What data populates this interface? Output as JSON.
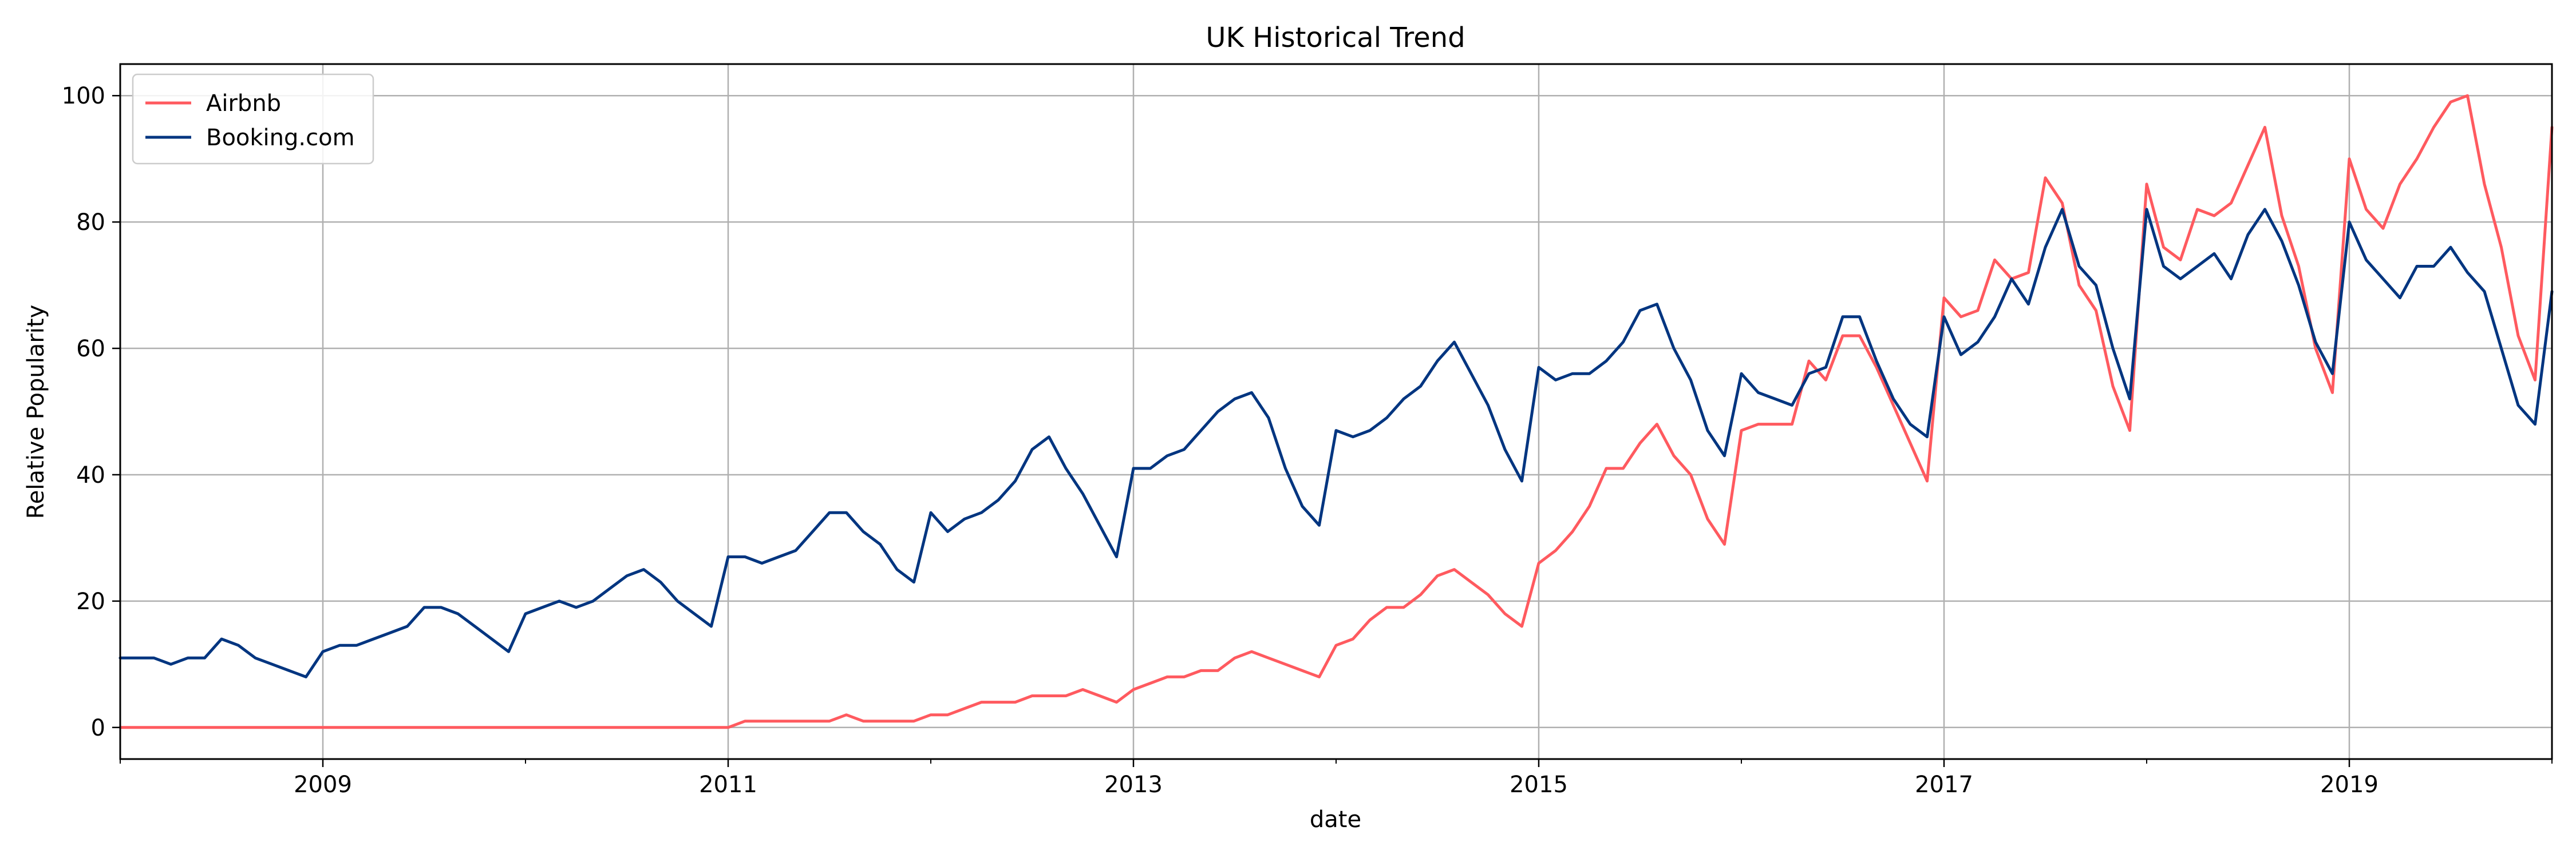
{
  "chart_data": {
    "type": "line",
    "title": "UK Historical Trend",
    "xlabel": "date",
    "ylabel": "Relative Popularity",
    "x_start": "2008-01",
    "frequency": "monthly",
    "xlim": [
      "2008-01",
      "2020-01"
    ],
    "ylim": [
      -5,
      105
    ],
    "x_ticks": [
      "2009",
      "2011",
      "2013",
      "2015",
      "2017",
      "2019"
    ],
    "y_ticks": [
      0,
      20,
      40,
      60,
      80,
      100
    ],
    "grid": true,
    "legend_position": "top-left",
    "series": [
      {
        "name": "Airbnb",
        "color": "#ff5a5f",
        "values": [
          0,
          0,
          0,
          0,
          0,
          0,
          0,
          0,
          0,
          0,
          0,
          0,
          0,
          0,
          0,
          0,
          0,
          0,
          0,
          0,
          0,
          0,
          0,
          0,
          0,
          0,
          0,
          0,
          0,
          0,
          0,
          0,
          0,
          0,
          0,
          0,
          0,
          1,
          1,
          1,
          1,
          1,
          1,
          2,
          1,
          1,
          1,
          1,
          2,
          2,
          3,
          4,
          4,
          4,
          5,
          5,
          5,
          6,
          5,
          4,
          6,
          7,
          8,
          8,
          9,
          9,
          11,
          12,
          11,
          10,
          9,
          8,
          13,
          14,
          17,
          19,
          19,
          21,
          24,
          25,
          23,
          21,
          18,
          16,
          26,
          28,
          31,
          35,
          41,
          41,
          45,
          48,
          43,
          40,
          33,
          29,
          47,
          48,
          48,
          48,
          58,
          55,
          62,
          62,
          57,
          51,
          45,
          39,
          68,
          65,
          66,
          74,
          71,
          72,
          87,
          83,
          70,
          66,
          54,
          47,
          86,
          76,
          74,
          82,
          81,
          83,
          89,
          95,
          81,
          73,
          60,
          53,
          90,
          82,
          79,
          86,
          90,
          95,
          99,
          100,
          86,
          76,
          62,
          55,
          95
        ]
      },
      {
        "name": "Booking.com",
        "color": "#003580",
        "values": [
          11,
          11,
          11,
          10,
          11,
          11,
          14,
          13,
          11,
          10,
          9,
          8,
          12,
          13,
          13,
          14,
          15,
          16,
          19,
          19,
          18,
          16,
          14,
          12,
          18,
          19,
          20,
          19,
          20,
          22,
          24,
          25,
          23,
          20,
          18,
          16,
          27,
          27,
          26,
          27,
          28,
          31,
          34,
          34,
          31,
          29,
          25,
          23,
          34,
          31,
          33,
          34,
          36,
          39,
          44,
          46,
          41,
          37,
          32,
          27,
          41,
          41,
          43,
          44,
          47,
          50,
          52,
          53,
          49,
          41,
          35,
          32,
          47,
          46,
          47,
          49,
          52,
          54,
          58,
          61,
          56,
          51,
          44,
          39,
          57,
          55,
          56,
          56,
          58,
          61,
          66,
          67,
          60,
          55,
          47,
          43,
          56,
          53,
          52,
          51,
          56,
          57,
          65,
          65,
          58,
          52,
          48,
          46,
          65,
          59,
          61,
          65,
          71,
          67,
          76,
          82,
          73,
          70,
          60,
          52,
          82,
          73,
          71,
          73,
          75,
          71,
          78,
          82,
          77,
          70,
          61,
          56,
          80,
          74,
          71,
          68,
          73,
          73,
          76,
          72,
          69,
          60,
          51,
          48,
          69
        ]
      }
    ]
  }
}
